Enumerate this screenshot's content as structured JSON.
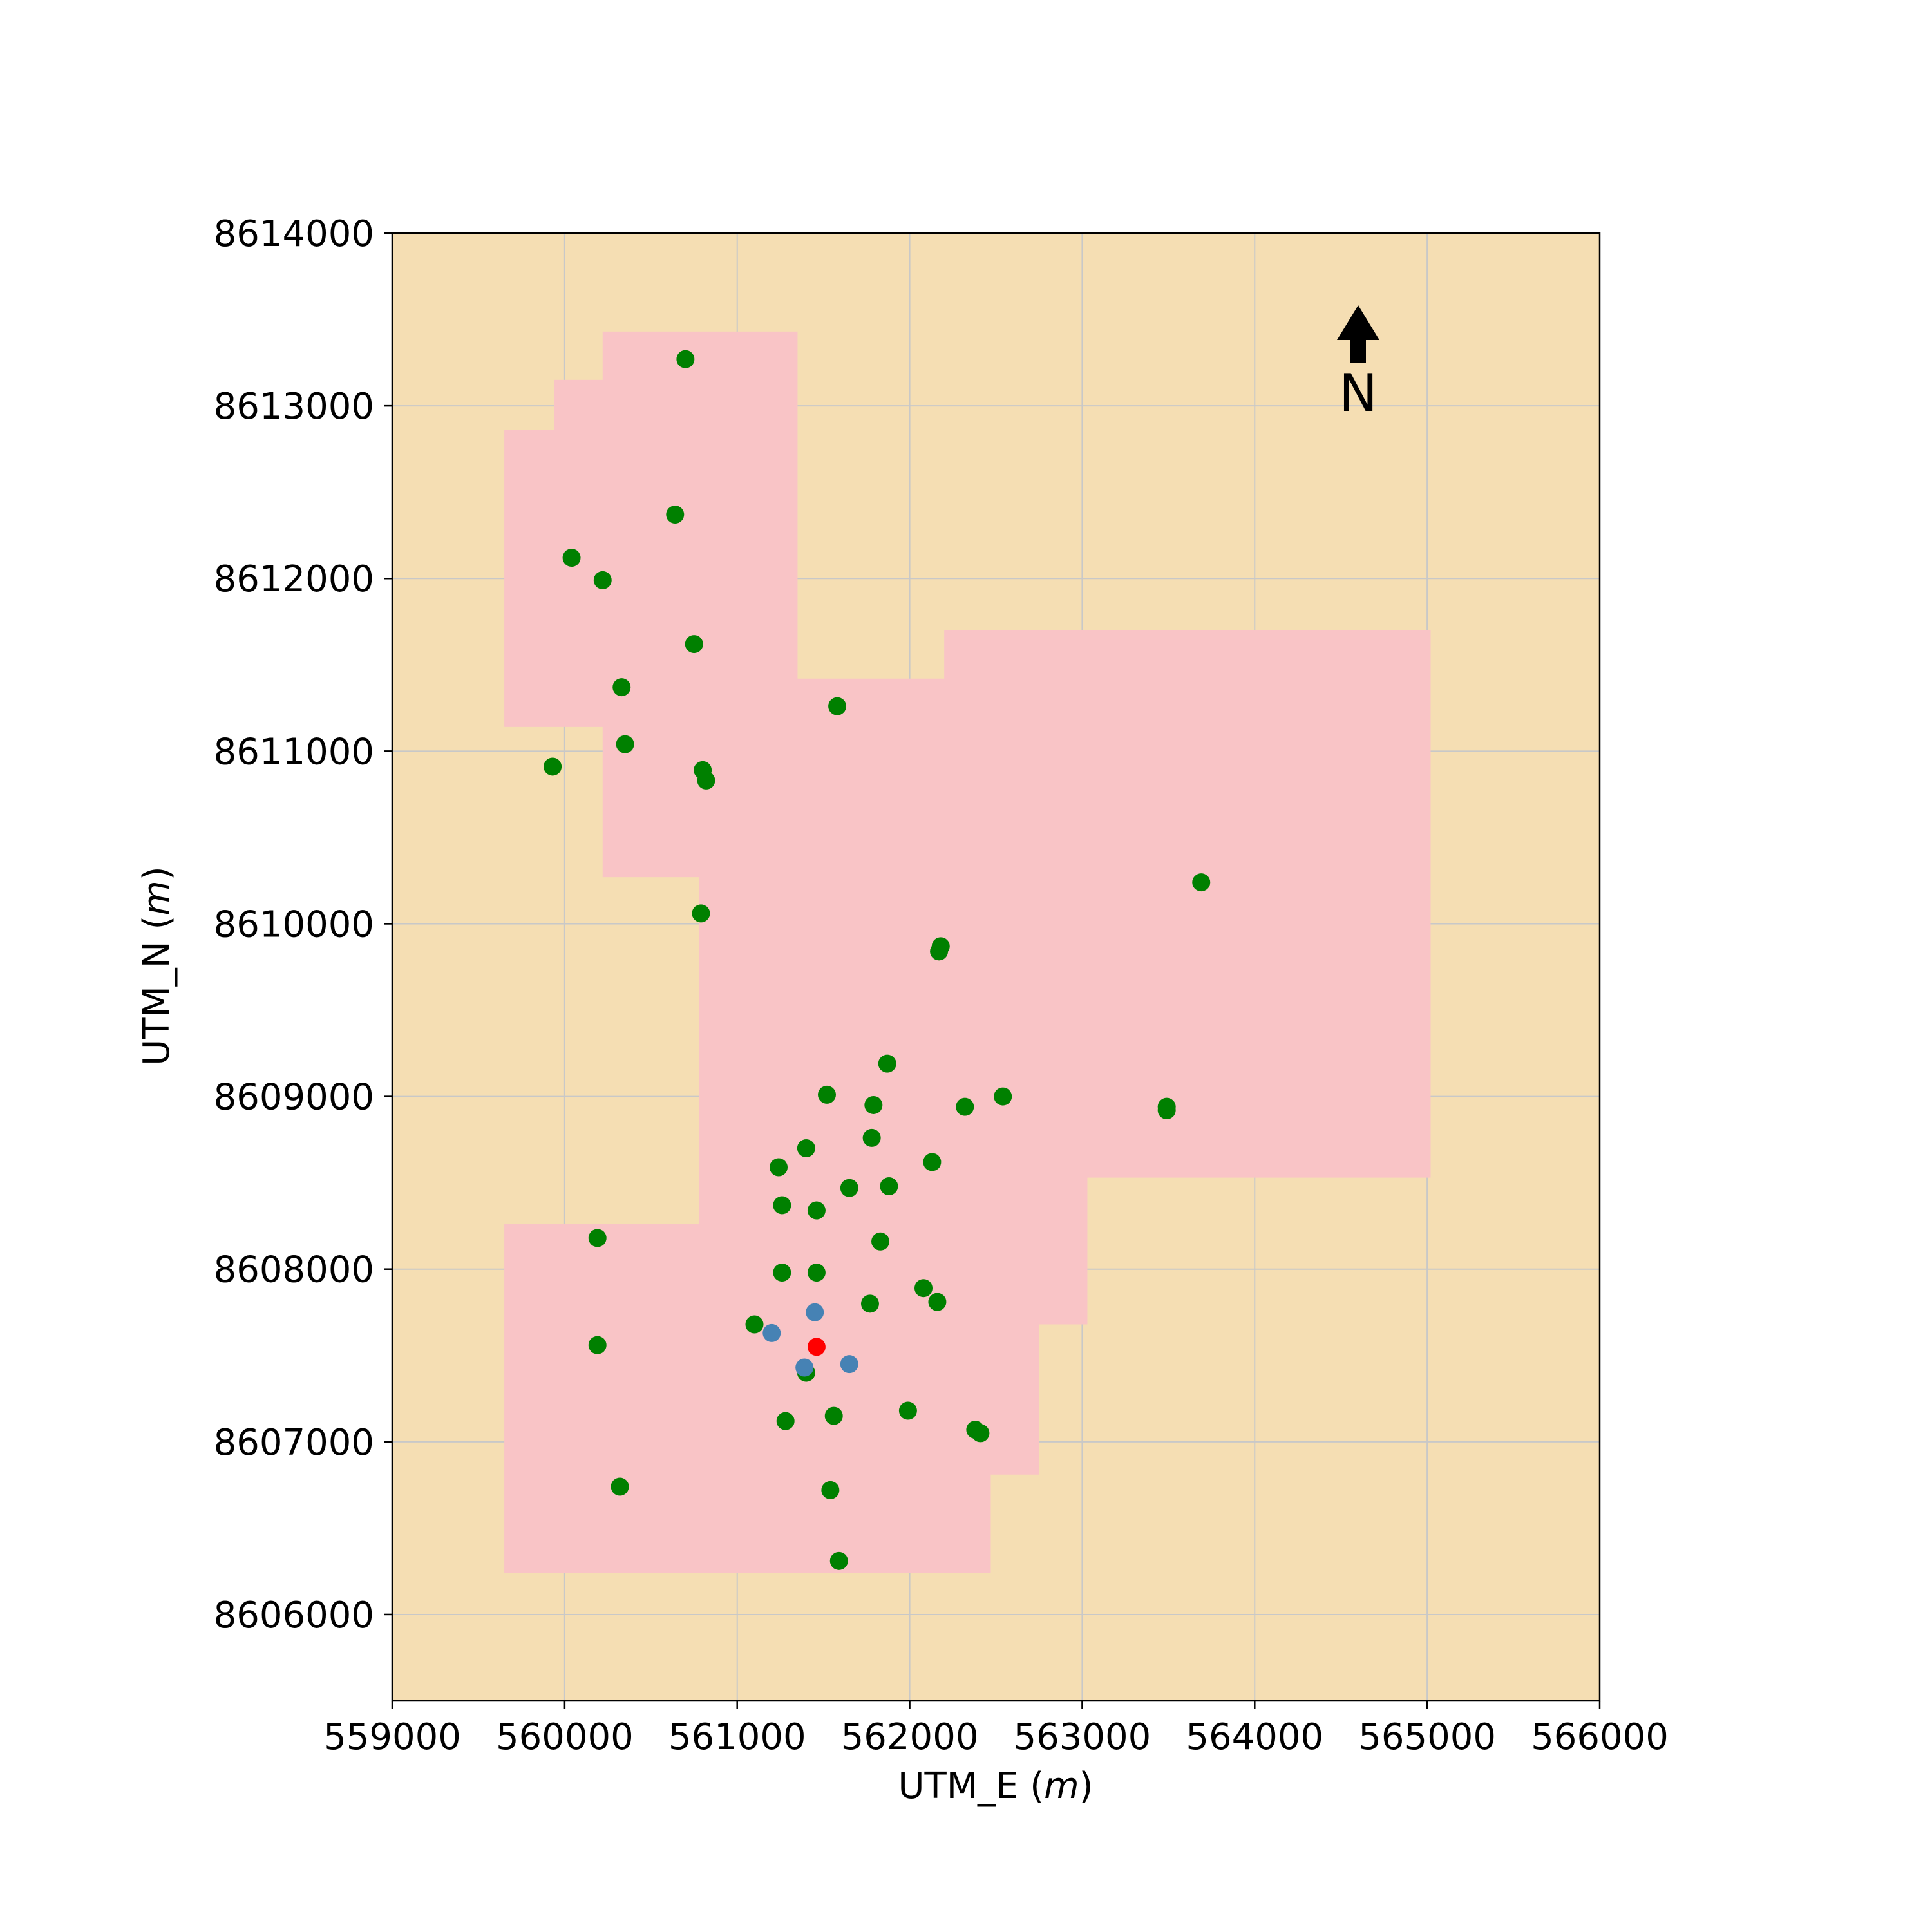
{
  "colors": {
    "background": "#f5deb3",
    "region": "#f9c4c6",
    "grid": "#c8c8c8",
    "station": "#008000",
    "blue_point": "#4682b4",
    "red_point": "#ff0000",
    "arrow": "#000000"
  },
  "north": {
    "label": "N"
  },
  "chart_data": {
    "type": "scatter",
    "xlabel": "UTM_E",
    "ylabel": "UTM_N",
    "unit": "m",
    "xlim": [
      559000,
      566000
    ],
    "ylim": [
      8605500,
      8614000
    ],
    "grid": true,
    "xticks": [
      559000,
      560000,
      561000,
      562000,
      563000,
      564000,
      565000,
      566000
    ],
    "yticks": [
      8606000,
      8607000,
      8608000,
      8609000,
      8610000,
      8611000,
      8612000,
      8613000,
      8614000
    ],
    "region_polygon": [
      [
        560220,
        8613430
      ],
      [
        561350,
        8613430
      ],
      [
        561350,
        8611420
      ],
      [
        562200,
        8611420
      ],
      [
        562200,
        8611700
      ],
      [
        565020,
        8611700
      ],
      [
        565020,
        8608530
      ],
      [
        563030,
        8608530
      ],
      [
        563030,
        8607680
      ],
      [
        562750,
        8607680
      ],
      [
        562750,
        8606810
      ],
      [
        562470,
        8606810
      ],
      [
        562470,
        8606240
      ],
      [
        559650,
        8606240
      ],
      [
        559650,
        8608260
      ],
      [
        560780,
        8608260
      ],
      [
        560780,
        8610270
      ],
      [
        560220,
        8610270
      ],
      [
        560220,
        8611140
      ],
      [
        559650,
        8611140
      ],
      [
        559650,
        8612860
      ],
      [
        559940,
        8612860
      ],
      [
        559940,
        8613150
      ],
      [
        560220,
        8613150
      ]
    ],
    "series": [
      {
        "marker_color": "#008000",
        "points": [
          [
            560700,
            8613270
          ],
          [
            560640,
            8612370
          ],
          [
            560040,
            8612120
          ],
          [
            560220,
            8611990
          ],
          [
            560750,
            8611620
          ],
          [
            560330,
            8611370
          ],
          [
            561580,
            8611260
          ],
          [
            560350,
            8611040
          ],
          [
            559930,
            8610910
          ],
          [
            560800,
            8610890
          ],
          [
            560820,
            8610830
          ],
          [
            563690,
            8610240
          ],
          [
            560790,
            8610060
          ],
          [
            562180,
            8609870
          ],
          [
            562170,
            8609840
          ],
          [
            561870,
            8609190
          ],
          [
            561520,
            8609010
          ],
          [
            562540,
            8609000
          ],
          [
            561790,
            8608950
          ],
          [
            562320,
            8608940
          ],
          [
            563490,
            8608940
          ],
          [
            563490,
            8608920
          ],
          [
            561780,
            8608760
          ],
          [
            561400,
            8608700
          ],
          [
            562130,
            8608620
          ],
          [
            561240,
            8608590
          ],
          [
            561650,
            8608470
          ],
          [
            561880,
            8608480
          ],
          [
            561260,
            8608370
          ],
          [
            561460,
            8608340
          ],
          [
            560190,
            8608180
          ],
          [
            561830,
            8608160
          ],
          [
            561260,
            8607980
          ],
          [
            561460,
            8607980
          ],
          [
            562080,
            8607890
          ],
          [
            561770,
            8607800
          ],
          [
            562160,
            8607810
          ],
          [
            561100,
            8607680
          ],
          [
            560190,
            8607560
          ],
          [
            561400,
            8607400
          ],
          [
            561990,
            8607180
          ],
          [
            561560,
            8607150
          ],
          [
            561280,
            8607120
          ],
          [
            562380,
            8607070
          ],
          [
            562410,
            8607050
          ],
          [
            560320,
            8606740
          ],
          [
            561540,
            8606720
          ],
          [
            561590,
            8606310
          ]
        ]
      },
      {
        "marker_color": "#4682b4",
        "points": [
          [
            561450,
            8607750
          ],
          [
            561200,
            8607630
          ],
          [
            561390,
            8607430
          ],
          [
            561650,
            8607450
          ]
        ]
      },
      {
        "marker_color": "#ff0000",
        "points": [
          [
            561460,
            8607550
          ]
        ]
      }
    ]
  }
}
